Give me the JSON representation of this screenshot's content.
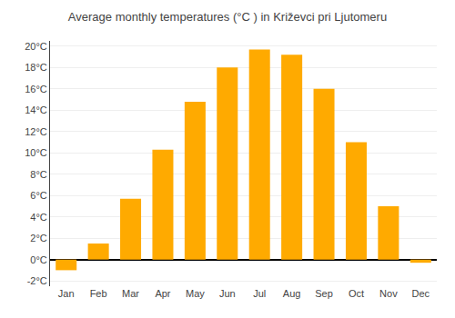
{
  "chart_data": {
    "type": "bar",
    "title": "Average monthly temperatures (°C ) in Križevci pri Ljutomeru",
    "categories": [
      "Jan",
      "Feb",
      "Mar",
      "Apr",
      "May",
      "Jun",
      "Jul",
      "Aug",
      "Sep",
      "Oct",
      "Nov",
      "Dec"
    ],
    "values": [
      -1.0,
      1.5,
      5.7,
      10.3,
      14.8,
      18.0,
      19.7,
      19.2,
      16.0,
      11.0,
      5.0,
      -0.3
    ],
    "color": "#FFAA00",
    "ylim": [
      -2.5,
      20.5
    ],
    "yticks": [
      {
        "value": -2,
        "label": "-2°C"
      },
      {
        "value": 0,
        "label": "0°C"
      },
      {
        "value": 2,
        "label": "2°C"
      },
      {
        "value": 4,
        "label": "4°C"
      },
      {
        "value": 6,
        "label": "6°C"
      },
      {
        "value": 8,
        "label": "8°C"
      },
      {
        "value": 10,
        "label": "10°C"
      },
      {
        "value": 12,
        "label": "12°C"
      },
      {
        "value": 14,
        "label": "14°C"
      },
      {
        "value": 16,
        "label": "16°C"
      },
      {
        "value": 18,
        "label": "18°C"
      },
      {
        "value": 20,
        "label": "20°C"
      }
    ],
    "grid": true
  }
}
